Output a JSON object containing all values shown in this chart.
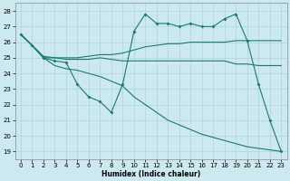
{
  "background_color": "#cce9f0",
  "grid_color": "#aad4dc",
  "line_color": "#1a7a6e",
  "x_label": "Humidex (Indice chaleur)",
  "ylim": [
    18.5,
    28.5
  ],
  "xlim": [
    -0.5,
    23.5
  ],
  "yticks": [
    19,
    20,
    21,
    22,
    23,
    24,
    25,
    26,
    27,
    28
  ],
  "xticks": [
    0,
    1,
    2,
    3,
    4,
    5,
    6,
    7,
    8,
    9,
    10,
    11,
    12,
    13,
    14,
    15,
    16,
    17,
    18,
    19,
    20,
    21,
    22,
    23
  ],
  "line1_x": [
    0,
    1,
    2,
    3,
    4,
    5,
    6,
    7,
    8,
    9,
    10,
    11,
    12,
    13,
    14,
    15,
    16,
    17,
    18,
    19,
    20,
    21,
    22,
    23
  ],
  "line1_y": [
    26.5,
    25.8,
    25.0,
    25.0,
    24.9,
    24.9,
    24.9,
    25.0,
    24.9,
    24.8,
    24.8,
    24.8,
    24.8,
    24.8,
    24.8,
    24.8,
    24.8,
    24.8,
    24.8,
    24.6,
    24.6,
    24.5,
    24.5,
    24.5
  ],
  "line2_x": [
    0,
    1,
    2,
    3,
    4,
    5,
    6,
    7,
    8,
    9,
    10,
    11,
    12,
    13,
    14,
    15,
    16,
    17,
    18,
    19,
    20,
    21,
    22,
    23
  ],
  "line2_y": [
    26.5,
    25.8,
    25.1,
    25.0,
    25.0,
    25.0,
    25.1,
    25.2,
    25.2,
    25.3,
    25.5,
    25.7,
    25.8,
    25.9,
    25.9,
    26.0,
    26.0,
    26.0,
    26.0,
    26.1,
    26.1,
    26.1,
    26.1,
    26.1
  ],
  "line3_x": [
    0,
    1,
    2,
    3,
    4,
    5,
    6,
    7,
    8,
    9,
    10,
    11,
    12,
    13,
    14,
    15,
    16,
    17,
    18,
    19,
    20,
    21,
    22,
    23
  ],
  "line3_y": [
    26.5,
    25.8,
    25.0,
    24.8,
    24.7,
    23.3,
    22.5,
    22.2,
    21.5,
    23.3,
    26.7,
    27.8,
    27.2,
    27.2,
    27.0,
    27.2,
    27.0,
    27.0,
    27.5,
    27.8,
    26.1,
    23.3,
    21.0,
    19.0
  ],
  "line4_x": [
    0,
    1,
    2,
    3,
    4,
    5,
    6,
    7,
    8,
    9,
    10,
    11,
    12,
    13,
    14,
    15,
    16,
    17,
    18,
    19,
    20,
    21,
    22,
    23
  ],
  "line4_y": [
    26.5,
    25.8,
    25.0,
    24.5,
    24.3,
    24.2,
    24.0,
    23.8,
    23.5,
    23.2,
    22.5,
    22.0,
    21.5,
    21.0,
    20.7,
    20.4,
    20.1,
    19.9,
    19.7,
    19.5,
    19.3,
    19.2,
    19.1,
    19.0
  ]
}
